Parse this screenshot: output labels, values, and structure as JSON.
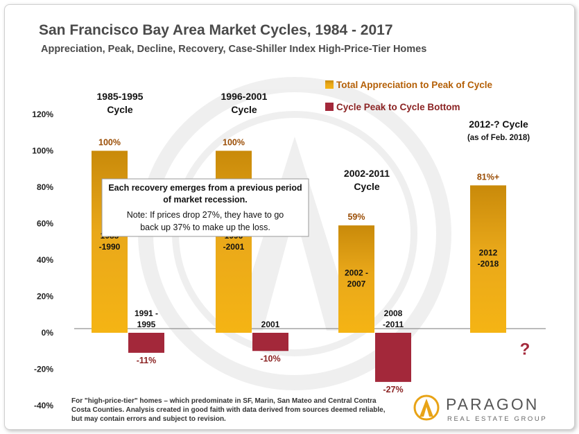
{
  "title": "San Francisco Bay Area Market Cycles, 1984 - 2017",
  "subtitle": "Appreciation, Peak, Decline, Recovery, Case-Shiller Index  High-Price-Tier Homes",
  "colors": {
    "appreciation": "#e6a50a",
    "decline": "#a3283a",
    "title": "#4a4a4a",
    "value_pos": "#9a4d05"
  },
  "chart_data": {
    "type": "bar",
    "ylim": [
      -40,
      120
    ],
    "yticks": [
      "120%",
      "100%",
      "80%",
      "60%",
      "40%",
      "20%",
      "0%",
      "-20%",
      "-40%"
    ],
    "series": [
      {
        "name": "Total Appreciation to Peak of Cycle",
        "values": [
          100,
          100,
          59,
          81
        ],
        "labels": [
          "100%",
          "100%",
          "59%",
          "81%+"
        ],
        "periods": [
          [
            "1985",
            "-1990"
          ],
          [
            "1996",
            "-2001"
          ],
          [
            "2002  -",
            "2007"
          ],
          [
            "2012",
            "-2018"
          ]
        ]
      },
      {
        "name": "Cycle Peak to Cycle Bottom",
        "values": [
          -11,
          -10,
          -27,
          null
        ],
        "labels": [
          "-11%",
          "-10%",
          "-27%",
          "?"
        ],
        "periods": [
          [
            "1991  -",
            "1995"
          ],
          [
            "2001"
          ],
          [
            "2008",
            "-2011"
          ],
          []
        ]
      }
    ],
    "cycles": [
      [
        "1985-1995",
        "Cycle"
      ],
      [
        "1996-2001",
        "Cycle"
      ],
      [
        "2002-2011",
        "Cycle"
      ],
      [
        "2012-? Cycle",
        "(as of Feb. 2018)"
      ]
    ]
  },
  "note": [
    "Each recovery emerges from a previous period",
    "of market recession.",
    "Note: If prices drop 27%, they have to go",
    "back up 37% to make up the loss."
  ],
  "footnote": [
    "For \"high-price-tier\" homes – which predominate in SF, Marin, San Mateo  and Central Contra",
    "Costa Counties. Analysis created in good faith with data derived from sources deemed reliable,",
    "but may contain errors and subject to revision."
  ],
  "logo": {
    "name": "PARAGON",
    "tagline": "REAL ESTATE GROUP"
  }
}
